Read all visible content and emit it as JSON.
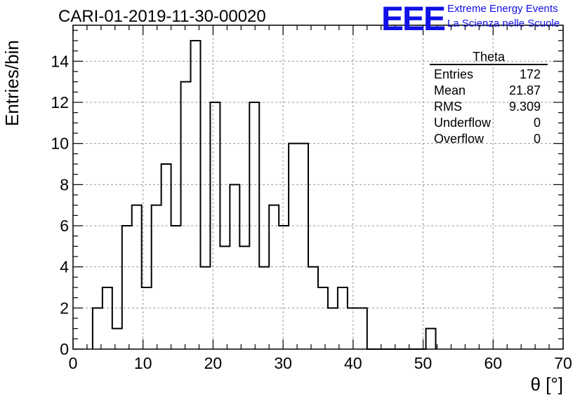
{
  "header": {
    "run_title": "CARI-01-2019-11-30-00020",
    "logo_text": "EEE",
    "logo_line1": "Extreme Energy Events",
    "logo_line2": "La Scienza nelle Scuole",
    "logo_color": "#1010e8"
  },
  "stats_box": {
    "title": "Theta",
    "rows": [
      {
        "label": "Entries",
        "value": "172"
      },
      {
        "label": "Mean",
        "value": "21.87"
      },
      {
        "label": "RMS",
        "value": "9.309"
      },
      {
        "label": "Underflow",
        "value": "0"
      },
      {
        "label": "Overflow",
        "value": "0"
      }
    ]
  },
  "chart_data": {
    "type": "bar",
    "histogram": true,
    "title": "",
    "xlabel": "θ [°]",
    "ylabel": "Entries/bin",
    "xlim": [
      0,
      70
    ],
    "ylim": [
      0,
      15.75
    ],
    "bin_width": 1.4,
    "bin_start": 2.8,
    "values": [
      2,
      3,
      1,
      6,
      7,
      3,
      7,
      9,
      6,
      13,
      15,
      4,
      12,
      5,
      8,
      5,
      12,
      4,
      7,
      6,
      10,
      10,
      4,
      3,
      2,
      3,
      2,
      2,
      0,
      0,
      0,
      0,
      0,
      0,
      1
    ],
    "x_ticks": [
      0,
      10,
      20,
      30,
      40,
      50,
      60,
      70
    ],
    "x_tick_labels": [
      "0",
      "10",
      "20",
      "30",
      "40",
      "50",
      "60",
      "70"
    ],
    "y_ticks": [
      0,
      2,
      4,
      6,
      8,
      10,
      12,
      14
    ],
    "y_tick_labels": [
      "0",
      "2",
      "4",
      "6",
      "8",
      "10",
      "12",
      "14"
    ],
    "grid": true,
    "legend": "stats box top-right"
  }
}
